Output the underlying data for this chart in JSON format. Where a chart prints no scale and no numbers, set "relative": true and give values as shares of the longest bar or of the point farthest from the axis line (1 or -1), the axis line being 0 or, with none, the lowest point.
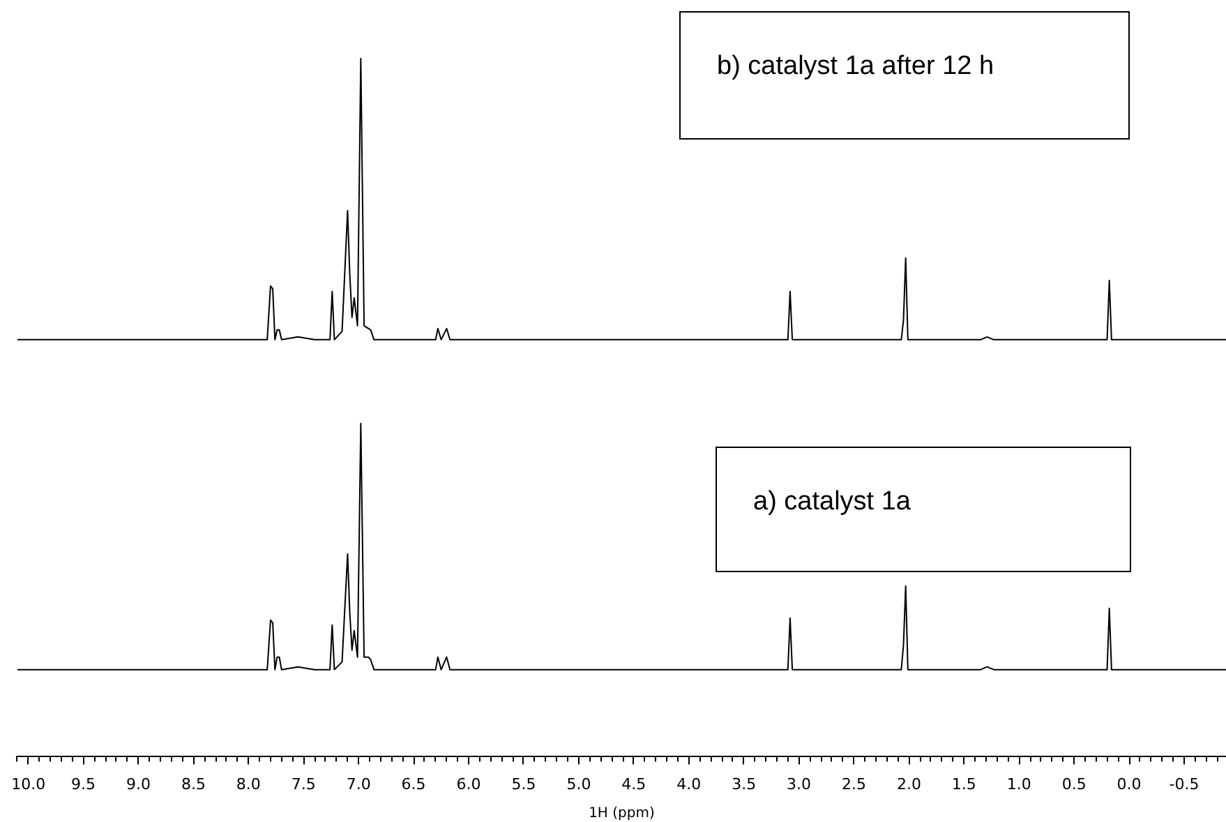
{
  "chart_data": {
    "type": "line",
    "relative": true,
    "xlim": [
      10.1,
      -0.88
    ],
    "legend": false,
    "grid": false,
    "xlabel": "1H (ppm)",
    "annotations": [
      "b) catalyst 1a after 12 h",
      "a) catalyst 1a"
    ],
    "xticks": [
      {
        "value": 10,
        "label": "10.0"
      },
      9.5,
      {
        "value": 9,
        "label": "9.0"
      },
      8.5,
      {
        "value": 8,
        "label": "8.0"
      },
      7.5,
      {
        "value": 7,
        "label": "7.0"
      },
      6.5,
      {
        "value": 6,
        "label": "6.0"
      },
      5.5,
      {
        "value": 5,
        "label": "5.0"
      },
      4.5,
      {
        "value": 4,
        "label": "4.0"
      },
      3.5,
      {
        "value": 3,
        "label": "3.0"
      },
      2.5,
      {
        "value": 2,
        "label": "2.0"
      },
      1.5,
      {
        "value": 1,
        "label": "1.0"
      },
      0.5,
      {
        "value": 0,
        "label": "0.0"
      },
      -0.5
    ],
    "series": [
      {
        "color": "#000000",
        "x": [
          10.1,
          7.9,
          7.83,
          7.8,
          7.78,
          7.76,
          7.74,
          7.72,
          7.7,
          7.55,
          7.4,
          7.26,
          7.24,
          7.22,
          7.15,
          7.1,
          7.08,
          7.06,
          7.04,
          7.01,
          6.98,
          6.95,
          6.91,
          6.89,
          6.86,
          6.3,
          6.28,
          6.25,
          6.2,
          6.17,
          3.1,
          3.08,
          3.06,
          2.07,
          2.05,
          2.03,
          2.01,
          1.35,
          1.29,
          1.23,
          0.2,
          0.18,
          0.16,
          -0.88
        ],
        "values": [
          0.597,
          0.597,
          0.597,
          0.674,
          0.67,
          0.597,
          0.611,
          0.611,
          0.597,
          0.601,
          0.597,
          0.597,
          0.666,
          0.597,
          0.609,
          0.782,
          0.69,
          0.629,
          0.657,
          0.617,
          1,
          0.617,
          0.613,
          0.611,
          0.597,
          0.597,
          0.613,
          0.597,
          0.613,
          0.597,
          0.597,
          0.666,
          0.597,
          0.597,
          0.625,
          0.714,
          0.597,
          0.597,
          0.601,
          0.597,
          0.597,
          0.682,
          0.597,
          0.597
        ]
      },
      {
        "color": "#000000",
        "x": [
          10.1,
          7.9,
          7.83,
          7.8,
          7.78,
          7.76,
          7.74,
          7.72,
          7.7,
          7.55,
          7.4,
          7.26,
          7.24,
          7.22,
          7.15,
          7.1,
          7.08,
          7.06,
          7.04,
          7.01,
          6.98,
          6.95,
          6.91,
          6.89,
          6.86,
          6.3,
          6.28,
          6.25,
          6.2,
          6.17,
          3.1,
          3.08,
          3.06,
          2.07,
          2.05,
          2.03,
          2.01,
          1.35,
          1.29,
          1.23,
          0.2,
          0.18,
          0.16,
          -0.88
        ],
        "values": [
          0.124,
          0.124,
          0.124,
          0.195,
          0.191,
          0.124,
          0.142,
          0.142,
          0.124,
          0.128,
          0.124,
          0.124,
          0.188,
          0.124,
          0.135,
          0.29,
          0.205,
          0.152,
          0.18,
          0.142,
          0.477,
          0.142,
          0.142,
          0.138,
          0.124,
          0.124,
          0.142,
          0.124,
          0.142,
          0.124,
          0.124,
          0.198,
          0.124,
          0.124,
          0.159,
          0.244,
          0.124,
          0.124,
          0.128,
          0.124,
          0.124,
          0.212,
          0.124,
          0.124
        ]
      }
    ]
  }
}
